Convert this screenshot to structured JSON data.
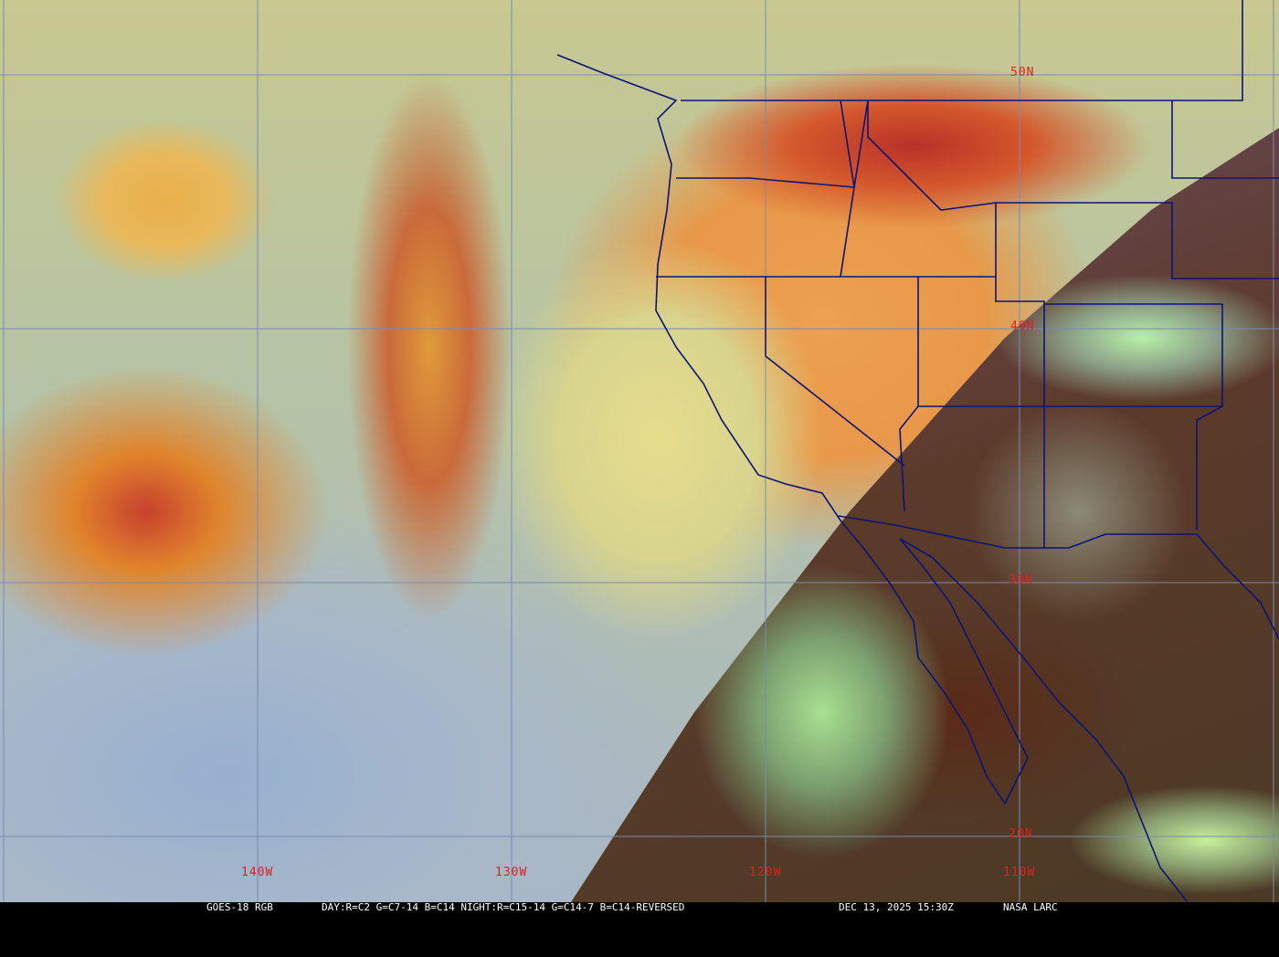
{
  "image": {
    "type": "satellite-imagery",
    "colors": {
      "grid": "#7a8ab0",
      "borders": "#0a1478",
      "labels": "#e02020",
      "caption_bg": "#000000",
      "caption_text": "#ffffff"
    }
  },
  "grid_labels": {
    "lat": [
      "50N",
      "40N",
      "30N",
      "20N"
    ],
    "lon": [
      "140W",
      "130W",
      "120W",
      "110W"
    ]
  },
  "caption": {
    "product": "GOES-18 RGB",
    "bands": "DAY:R=C2 G=C7-14 B=C14 NIGHT:R=C15-14 G=C14-7 B=C14-REVERSED",
    "datetime": "DEC 13, 2025 15:30Z",
    "credit": "NASA LARC"
  }
}
